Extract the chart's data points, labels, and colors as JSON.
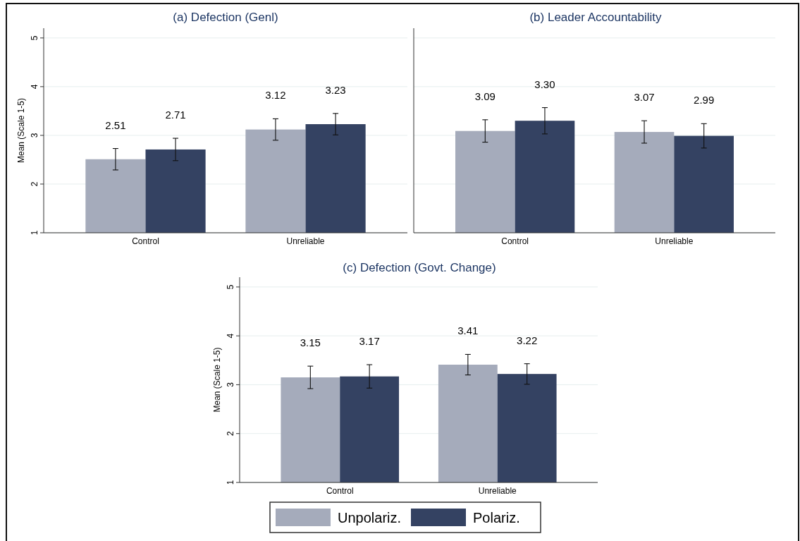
{
  "chart_data": [
    {
      "type": "bar",
      "title": "(a) Defection (Genl)",
      "ylabel": "Mean (Scale 1-5)",
      "categories": [
        "Control",
        "Unreliable"
      ],
      "ylim": [
        1,
        5.2
      ],
      "yticks": [
        1,
        2,
        3,
        4,
        5
      ],
      "grid": "y",
      "series": [
        {
          "color": "#a5abbb",
          "values": [
            2.51,
            3.12
          ],
          "errors": [
            0.22,
            0.22
          ],
          "value_labels": [
            "2.51",
            "3.12"
          ]
        },
        {
          "color": "#344262",
          "values": [
            2.71,
            3.23
          ],
          "errors": [
            0.23,
            0.22
          ],
          "value_labels": [
            "2.71",
            "3.23"
          ]
        }
      ]
    },
    {
      "type": "bar",
      "title": "(b) Leader Accountability",
      "categories": [
        "Control",
        "Unreliable"
      ],
      "ylim": [
        1,
        5.2
      ],
      "yticks": [
        1,
        2,
        3,
        4,
        5
      ],
      "tick_labels": "x",
      "grid": "y",
      "series": [
        {
          "color": "#a5abbb",
          "values": [
            3.09,
            3.07
          ],
          "errors": [
            0.23,
            0.23
          ],
          "value_labels": [
            "3.09",
            "3.07"
          ]
        },
        {
          "color": "#344262",
          "values": [
            3.3,
            2.99
          ],
          "errors": [
            0.27,
            0.25
          ],
          "value_labels": [
            "3.30",
            "2.99"
          ]
        }
      ]
    },
    {
      "type": "bar",
      "title": "(c) Defection (Govt. Change)",
      "ylabel": "Mean (Scale 1-5)",
      "categories": [
        "Control",
        "Unreliable"
      ],
      "ylim": [
        1,
        5.2
      ],
      "yticks": [
        1,
        2,
        3,
        4,
        5
      ],
      "grid": "y",
      "legend": "bottom",
      "series": [
        {
          "name": "Unpolariz.",
          "color": "#a5abbb",
          "values": [
            3.15,
            3.41
          ],
          "errors": [
            0.23,
            0.21
          ],
          "value_labels": [
            "3.15",
            "3.41"
          ]
        },
        {
          "name": "Polariz.",
          "color": "#344262",
          "values": [
            3.17,
            3.22
          ],
          "errors": [
            0.24,
            0.21
          ],
          "value_labels": [
            "3.17",
            "3.22"
          ]
        }
      ]
    }
  ]
}
